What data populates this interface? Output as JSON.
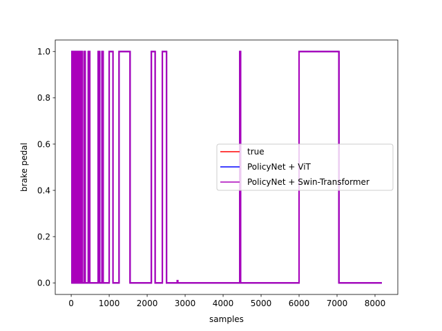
{
  "chart_data": {
    "type": "line",
    "title": "",
    "xlabel": "samples",
    "ylabel": "brake pedal",
    "xlim": [
      -420,
      8600
    ],
    "ylim": [
      -0.05,
      1.05
    ],
    "xticks": [
      0,
      1000,
      2000,
      3000,
      4000,
      5000,
      6000,
      7000,
      8000
    ],
    "yticks": [
      0.0,
      0.2,
      0.4,
      0.6,
      0.8,
      1.0
    ],
    "xtick_labels": [
      "0",
      "1000",
      "2000",
      "3000",
      "4000",
      "5000",
      "6000",
      "7000",
      "8000"
    ],
    "ytick_labels": [
      "0.0",
      "0.2",
      "0.4",
      "0.6",
      "0.8",
      "1.0"
    ],
    "grid": false,
    "legend_position": "center-right",
    "series": [
      {
        "name": "true",
        "color": "#ff0000",
        "step_segments": [
          [
            0,
            1
          ],
          [
            20,
            0
          ],
          [
            40,
            1
          ],
          [
            55,
            0
          ],
          [
            70,
            1
          ],
          [
            85,
            0
          ],
          [
            100,
            1
          ],
          [
            115,
            0
          ],
          [
            130,
            1
          ],
          [
            150,
            0
          ],
          [
            170,
            1
          ],
          [
            190,
            0
          ],
          [
            210,
            1
          ],
          [
            240,
            0
          ],
          [
            270,
            1
          ],
          [
            290,
            0
          ],
          [
            340,
            1
          ],
          [
            370,
            0
          ],
          [
            450,
            1
          ],
          [
            490,
            0
          ],
          [
            710,
            1
          ],
          [
            750,
            0
          ],
          [
            810,
            1
          ],
          [
            840,
            0
          ],
          [
            1000,
            1
          ],
          [
            1100,
            0
          ],
          [
            1260,
            1
          ],
          [
            1550,
            0
          ],
          [
            2110,
            1
          ],
          [
            2210,
            0
          ],
          [
            2400,
            1
          ],
          [
            2510,
            0
          ],
          [
            2800,
            0
          ],
          [
            4440,
            1
          ],
          [
            4460,
            0
          ],
          [
            6000,
            1
          ],
          [
            7050,
            0
          ],
          [
            8180,
            0
          ]
        ]
      },
      {
        "name": "PolicyNet + ViT",
        "color": "#0000ff",
        "step_segments": [
          [
            0,
            1
          ],
          [
            20,
            0
          ],
          [
            40,
            1
          ],
          [
            55,
            0
          ],
          [
            70,
            1
          ],
          [
            85,
            0
          ],
          [
            100,
            1
          ],
          [
            115,
            0
          ],
          [
            130,
            1
          ],
          [
            150,
            0
          ],
          [
            170,
            1
          ],
          [
            190,
            0
          ],
          [
            210,
            1
          ],
          [
            240,
            0
          ],
          [
            270,
            1
          ],
          [
            290,
            0
          ],
          [
            340,
            1
          ],
          [
            370,
            0
          ],
          [
            450,
            1
          ],
          [
            490,
            0
          ],
          [
            710,
            1
          ],
          [
            750,
            0
          ],
          [
            810,
            1
          ],
          [
            840,
            0
          ],
          [
            1000,
            1
          ],
          [
            1100,
            0
          ],
          [
            1260,
            1
          ],
          [
            1550,
            0
          ],
          [
            2110,
            1
          ],
          [
            2210,
            0
          ],
          [
            2400,
            1
          ],
          [
            2510,
            0
          ],
          [
            2800,
            0
          ],
          [
            4440,
            1
          ],
          [
            4460,
            0
          ],
          [
            6000,
            1
          ],
          [
            7050,
            0
          ],
          [
            8180,
            0
          ]
        ]
      },
      {
        "name": "PolicyNet + Swin-Transformer",
        "color": "#aa00bb",
        "step_segments": [
          [
            0,
            1
          ],
          [
            20,
            0
          ],
          [
            40,
            1
          ],
          [
            55,
            0
          ],
          [
            70,
            1
          ],
          [
            85,
            0
          ],
          [
            100,
            1
          ],
          [
            115,
            0
          ],
          [
            130,
            1
          ],
          [
            150,
            0
          ],
          [
            170,
            1
          ],
          [
            190,
            0
          ],
          [
            210,
            1
          ],
          [
            240,
            0
          ],
          [
            270,
            1
          ],
          [
            290,
            0
          ],
          [
            340,
            1
          ],
          [
            370,
            0
          ],
          [
            450,
            1
          ],
          [
            490,
            0
          ],
          [
            710,
            1
          ],
          [
            750,
            0
          ],
          [
            810,
            1
          ],
          [
            840,
            0
          ],
          [
            1000,
            1
          ],
          [
            1100,
            0
          ],
          [
            1260,
            1
          ],
          [
            1550,
            0
          ],
          [
            2110,
            1
          ],
          [
            2210,
            0
          ],
          [
            2400,
            1
          ],
          [
            2510,
            0
          ],
          [
            2790,
            0.01
          ],
          [
            2810,
            0
          ],
          [
            4440,
            1
          ],
          [
            4460,
            0
          ],
          [
            6000,
            1
          ],
          [
            7050,
            0
          ],
          [
            8180,
            0
          ]
        ]
      }
    ]
  }
}
